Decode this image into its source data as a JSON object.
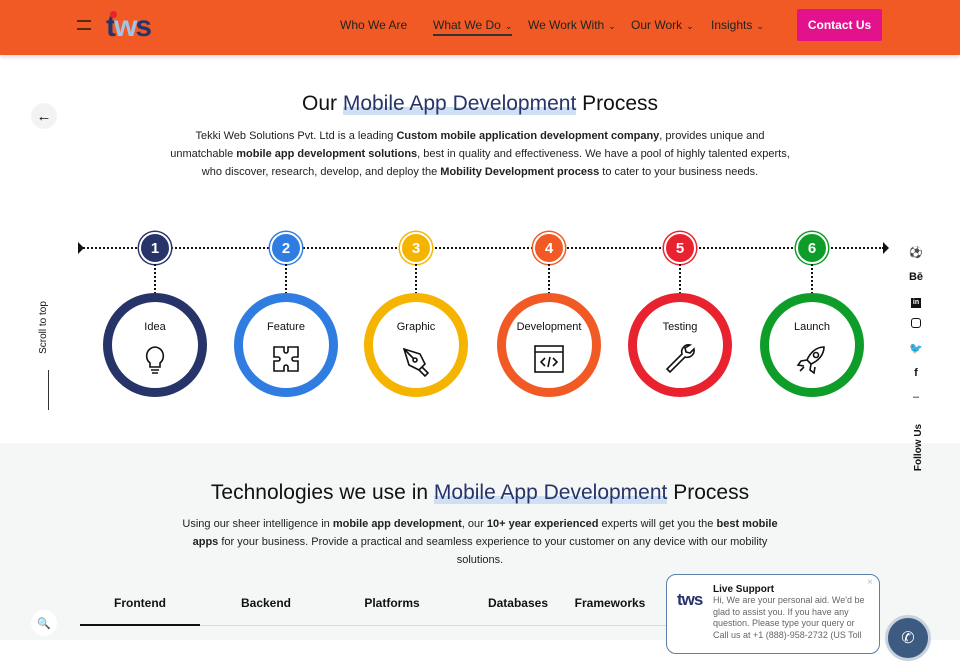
{
  "header": {
    "logo": "tws",
    "nav": [
      {
        "label": "Who We Are",
        "dropdown": false
      },
      {
        "label": "What We Do",
        "dropdown": true,
        "active": true
      },
      {
        "label": "We Work With",
        "dropdown": true
      },
      {
        "label": "Our Work",
        "dropdown": true
      },
      {
        "label": "Insights",
        "dropdown": true
      }
    ],
    "contact_label": "Contact Us",
    "bg_color": "#f15a24",
    "cta_color": "#e3128c"
  },
  "process": {
    "title_pre": "Our ",
    "title_hl": "Mobile App Development",
    "title_post": " Process",
    "para": [
      {
        "t": "Tekki Web Solutions Pvt. Ltd is a leading "
      },
      {
        "t": "Custom mobile application development company",
        "b": true
      },
      {
        "t": ", provides unique and unmatchable "
      },
      {
        "t": "mobile app development solutions",
        "b": true
      },
      {
        "t": ", best in quality and effectiveness. We have a pool of highly talented experts, who discover, research, develop, and deploy the "
      },
      {
        "t": "Mobility Development process",
        "b": true
      },
      {
        "t": " to cater to your business needs."
      }
    ],
    "steps": [
      {
        "num": "1",
        "label": "Idea",
        "icon": "lightbulb-icon",
        "color": "#273469"
      },
      {
        "num": "2",
        "label": "Feature",
        "icon": "puzzle-icon",
        "color": "#2f7de1"
      },
      {
        "num": "3",
        "label": "Graphic",
        "icon": "pen-tool-icon",
        "color": "#f5b400"
      },
      {
        "num": "4",
        "label": "Development",
        "icon": "code-window-icon",
        "color": "#f15a24"
      },
      {
        "num": "5",
        "label": "Testing",
        "icon": "wrench-icon",
        "color": "#e8232f"
      },
      {
        "num": "6",
        "label": "Launch",
        "icon": "rocket-icon",
        "color": "#0f9d2a"
      }
    ]
  },
  "scroll_label": "Scroll to top",
  "follow_label": "Follow Us",
  "social": [
    "dribbble-icon",
    "behance-icon",
    "linkedin-icon",
    "instagram-icon",
    "twitter-icon",
    "facebook-icon"
  ],
  "tech": {
    "title_pre": "Technologies we use in ",
    "title_hl": "Mobile App Development",
    "title_post": " Process",
    "para": [
      {
        "t": "Using our sheer intelligence in "
      },
      {
        "t": "mobile app development",
        "b": true
      },
      {
        "t": ", our "
      },
      {
        "t": "10+ year experienced",
        "b": true
      },
      {
        "t": " experts will get you the "
      },
      {
        "t": "best mobile apps",
        "b": true
      },
      {
        "t": " for your business. Provide a practical and seamless experience to your customer on any device with our mobility solutions."
      }
    ],
    "tabs": [
      "Frontend",
      "Backend",
      "Platforms",
      "Databases",
      "Frameworks"
    ],
    "active_tab": "Frontend"
  },
  "chat": {
    "logo": "tws",
    "title": "Live Support",
    "message": "Hi, We are your personal aid. We'd be glad to assist you. If you have any question. Please type your query or Call us at +1 (888)-958-2732 (US Toll"
  }
}
